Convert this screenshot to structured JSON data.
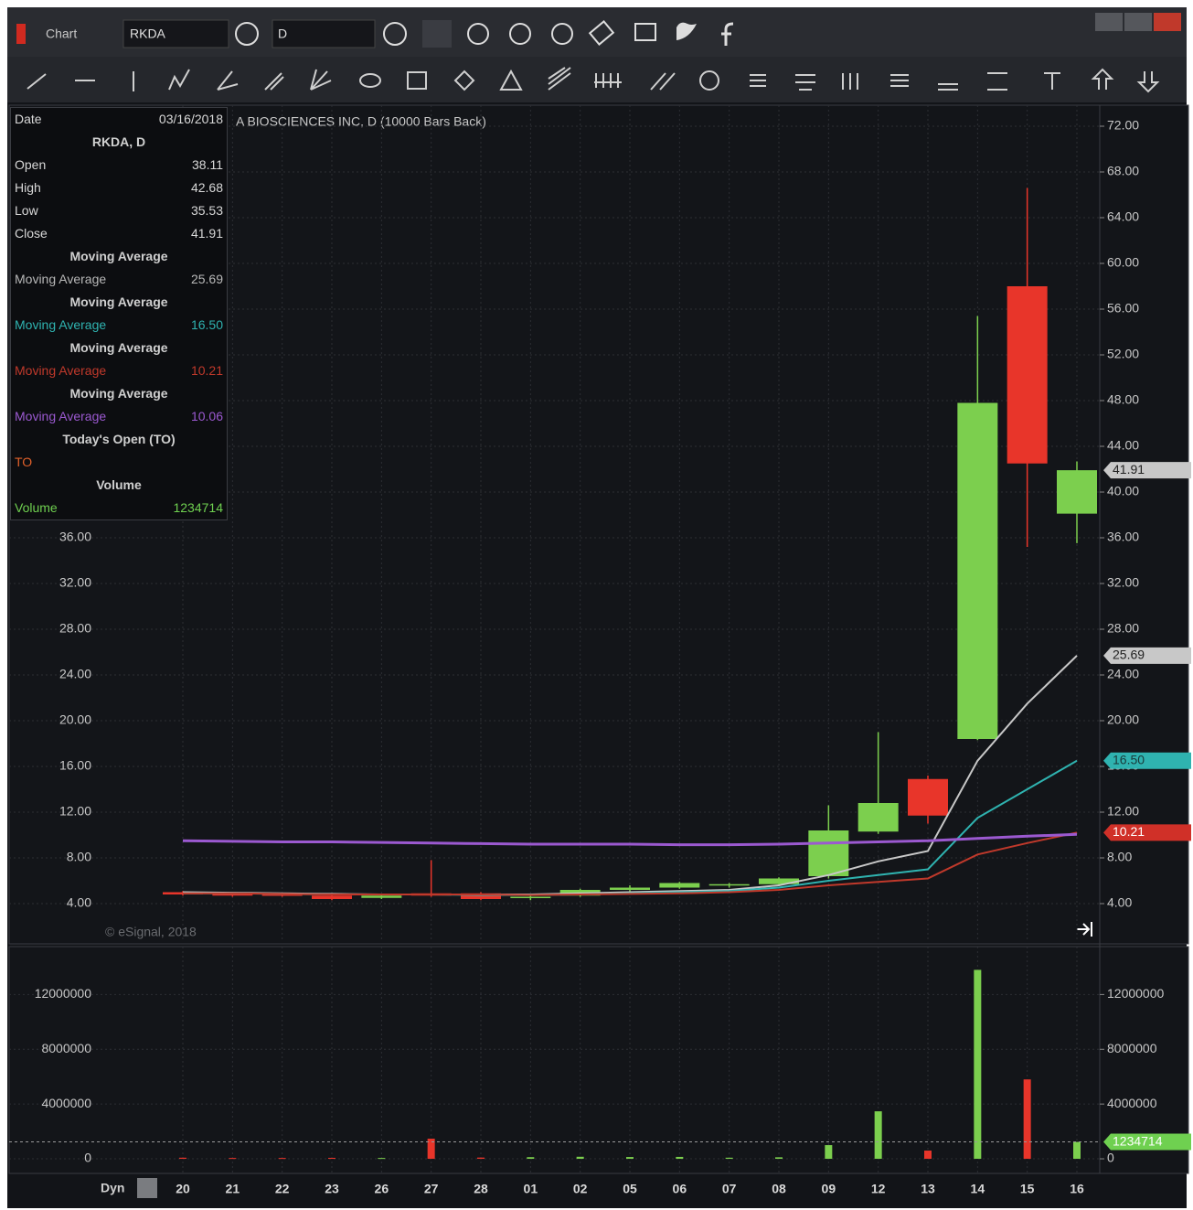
{
  "window": {
    "title": "Chart",
    "symbol": "RKDA",
    "interval": "D"
  },
  "chart_title": "A BIOSCIENCES INC, D (10000 Bars Back)",
  "watermark": "© eSignal, 2018",
  "x_axis_label": "Dyn",
  "data_window": {
    "date_label": "Date",
    "date": "03/16/2018",
    "symbol": "RKDA, D",
    "rows": [
      [
        "Open",
        "38.11"
      ],
      [
        "High",
        "42.68"
      ],
      [
        "Low",
        "35.53"
      ],
      [
        "Close",
        "41.91"
      ]
    ],
    "sections": [
      {
        "header": "Moving Average",
        "label": "Moving Average",
        "value": "25.69",
        "color": "#b8b8b8"
      },
      {
        "header": "Moving Average",
        "label": "Moving Average",
        "value": "16.50",
        "color": "#2fb3b0"
      },
      {
        "header": "Moving Average",
        "label": "Moving Average",
        "value": "10.21",
        "color": "#c0392b"
      },
      {
        "header": "Moving Average",
        "label": "Moving Average",
        "value": "10.06",
        "color": "#9b59d0"
      },
      {
        "header": "Today's Open (TO)",
        "label": "TO",
        "color": "#e0602a"
      },
      {
        "header": "Volume",
        "label": "Volume",
        "value": "1234714",
        "color": "#6fd050"
      }
    ]
  },
  "chart_data": [
    {
      "type": "candlestick",
      "open": [
        5.0,
        4.9,
        4.8,
        4.7,
        4.5,
        4.9,
        4.9,
        4.5,
        4.7,
        5.2,
        5.4,
        5.6,
        5.7,
        6.4,
        10.3,
        14.9,
        18.4,
        58.0,
        38.11
      ],
      "high": [
        5.1,
        5.0,
        4.9,
        4.8,
        4.8,
        7.8,
        5.0,
        4.7,
        5.3,
        5.6,
        5.9,
        5.8,
        6.3,
        12.6,
        19.0,
        15.2,
        55.4,
        66.6,
        42.68
      ],
      "low": [
        4.7,
        4.6,
        4.6,
        4.3,
        4.4,
        4.6,
        4.3,
        4.3,
        4.6,
        5.0,
        5.3,
        5.4,
        5.6,
        6.2,
        10.1,
        11.0,
        18.3,
        35.2,
        35.53
      ],
      "close": [
        4.8,
        4.7,
        4.7,
        4.4,
        4.7,
        4.7,
        4.4,
        4.6,
        5.2,
        5.4,
        5.8,
        5.7,
        6.2,
        10.4,
        12.8,
        11.7,
        47.8,
        42.5,
        41.91
      ],
      "up_color": "#7ccf4e",
      "down_color": "#e8352a",
      "series": [
        {
          "color": "#c8c8c8",
          "values": [
            5.0,
            4.95,
            4.9,
            4.85,
            4.8,
            4.8,
            4.8,
            4.8,
            4.9,
            5.0,
            5.1,
            5.2,
            5.6,
            6.5,
            7.7,
            8.6,
            16.5,
            21.5,
            25.69
          ]
        },
        {
          "color": "#2fb3b0",
          "values": [
            4.9,
            4.9,
            4.85,
            4.8,
            4.8,
            4.8,
            4.75,
            4.75,
            4.8,
            4.9,
            5.0,
            5.1,
            5.4,
            6.0,
            6.5,
            7.0,
            11.5,
            14.0,
            16.5
          ]
        },
        {
          "color": "#c0392b",
          "values": [
            4.9,
            4.9,
            4.85,
            4.8,
            4.8,
            4.8,
            4.8,
            4.75,
            4.8,
            4.85,
            4.9,
            5.0,
            5.2,
            5.6,
            5.9,
            6.2,
            8.3,
            9.3,
            10.21
          ]
        },
        {
          "color": "#9b59d0",
          "values": [
            9.5,
            9.45,
            9.4,
            9.4,
            9.35,
            9.3,
            9.25,
            9.2,
            9.2,
            9.2,
            9.15,
            9.15,
            9.2,
            9.3,
            9.4,
            9.5,
            9.7,
            9.9,
            10.06
          ]
        }
      ],
      "ylim": [
        0.64,
        73.84
      ],
      "yticks": [
        {
          "value": 4,
          "label": "4.00"
        },
        {
          "value": 8,
          "label": "8.00"
        },
        {
          "value": 12,
          "label": "12.00"
        },
        {
          "value": 16,
          "label": "16.00"
        },
        {
          "value": 20,
          "label": "20.00"
        },
        {
          "value": 24,
          "label": "24.00"
        },
        {
          "value": 28,
          "label": "28.00"
        },
        {
          "value": 32,
          "label": "32.00"
        },
        {
          "value": 36,
          "label": "36.00"
        },
        {
          "value": 40,
          "label": "40.00"
        },
        {
          "value": 44,
          "label": "44.00"
        },
        {
          "value": 48,
          "label": "48.00"
        },
        {
          "value": 52,
          "label": "52.00"
        },
        {
          "value": 56,
          "label": "56.00"
        },
        {
          "value": 60,
          "label": "60.00"
        },
        {
          "value": 64,
          "label": "64.00"
        },
        {
          "value": 68,
          "label": "68.00"
        },
        {
          "value": 72,
          "label": "72.00"
        }
      ],
      "grid": true
    },
    {
      "type": "bar",
      "categories": [
        "20",
        "21",
        "22",
        "23",
        "26",
        "27",
        "28",
        "01",
        "02",
        "05",
        "06",
        "07",
        "08",
        "09",
        "12",
        "13",
        "14",
        "15",
        "16"
      ],
      "values": [
        80000,
        60000,
        60000,
        70000,
        60000,
        1470000,
        90000,
        120000,
        150000,
        130000,
        140000,
        80000,
        110000,
        1000000,
        3470000,
        600000,
        13800000,
        5800000,
        1234714
      ],
      "ylim": [
        -1000000,
        15500000
      ],
      "yticks": [
        0,
        4000000,
        8000000,
        12000000
      ],
      "grid": true
    }
  ]
}
